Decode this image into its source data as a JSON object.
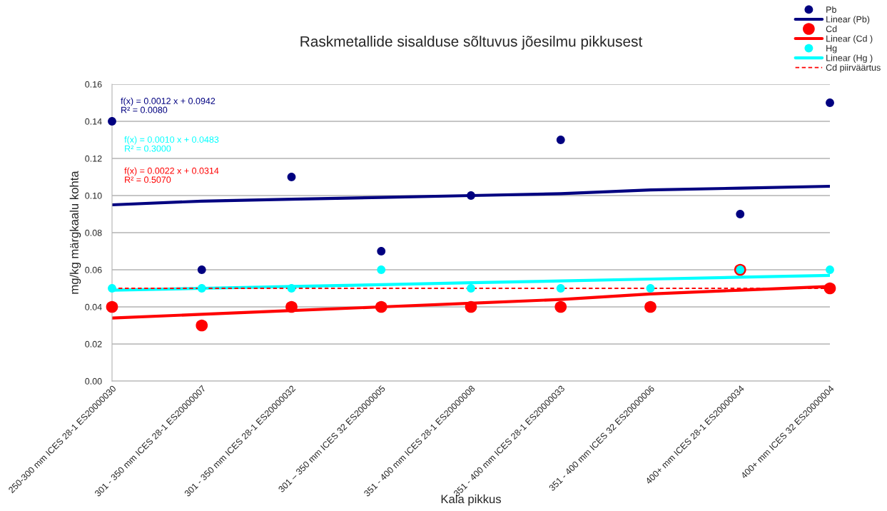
{
  "chart_data": {
    "type": "scatter",
    "title": "Raskmetallide sisalduse sõltuvus jõesilmu pikkusest",
    "xlabel": "Kala pikkus",
    "ylabel": "mg/kg märgkaalu kohta",
    "categories": [
      "250-300 mm ICES 28-1 ES20000030",
      "301 - 350 mm ICES 28-1 ES20000007",
      "301 - 350 mm ICES 28-1 ES20000032",
      "301 – 350 mm ICES 32 ES20000005",
      "351 - 400 mm ICES 28-1 ES20000008",
      "351 - 400 mm ICES 28-1 ES20000033",
      "351 - 400 mm ICES 32 ES20000006",
      "400+ mm ICES 28-1 ES20000034",
      "400+ mm ICES 32 ES20000004"
    ],
    "ylim": [
      0,
      0.16
    ],
    "yticks": [
      {
        "value": 0,
        "label": "0.00"
      },
      {
        "value": 0.02,
        "label": "0.02"
      },
      {
        "value": 0.04,
        "label": "0.04"
      },
      {
        "value": 0.06,
        "label": "0.06"
      },
      {
        "value": 0.08,
        "label": "0.08"
      },
      {
        "value": 0.1,
        "label": "0.10"
      },
      {
        "value": 0.12,
        "label": "0.12"
      },
      {
        "value": 0.14,
        "label": "0.14"
      },
      {
        "value": 0.16,
        "label": "0.16"
      }
    ],
    "grid": "y",
    "legend": "top right",
    "series": [
      {
        "name": "Pb",
        "marker": "circle",
        "color": "#000080",
        "values": [
          0.14,
          0.06,
          0.11,
          0.07,
          0.1,
          0.13,
          null,
          0.09,
          0.15
        ]
      },
      {
        "name": "Linear (Pb)",
        "type": "line",
        "color": "#000080",
        "values": [
          0.095,
          0.097,
          0.098,
          0.099,
          0.1,
          0.101,
          0.103,
          0.104,
          0.105
        ]
      },
      {
        "name": "Cd",
        "marker": "circle",
        "color": "#ff0000",
        "values": [
          0.04,
          0.03,
          0.04,
          0.04,
          0.04,
          0.04,
          0.04,
          0.06,
          0.05
        ]
      },
      {
        "name": "Linear (Cd )",
        "type": "line",
        "color": "#ff0000",
        "values": [
          0.034,
          0.036,
          0.038,
          0.04,
          0.042,
          0.044,
          0.047,
          0.049,
          0.051
        ]
      },
      {
        "name": "Hg",
        "marker": "circle",
        "color": "#00ffff",
        "values": [
          0.05,
          0.05,
          0.05,
          0.06,
          0.05,
          0.05,
          0.05,
          0.06,
          0.06
        ]
      },
      {
        "name": "Linear (Hg )",
        "type": "line",
        "color": "#00ffff",
        "values": [
          0.049,
          0.05,
          0.051,
          0.052,
          0.053,
          0.054,
          0.055,
          0.056,
          0.057
        ]
      },
      {
        "name": "Cd piirväärtus",
        "type": "line",
        "line_style": "dashed",
        "color": "#ff0000",
        "values": [
          0.05,
          0.05,
          0.05,
          0.05,
          0.05,
          0.05,
          0.05,
          0.05,
          0.05
        ]
      }
    ],
    "annotations": [
      "f(x) = 0.0012 x + 0.0942\nR² = 0.0080",
      "f(x) = 0.0010 x + 0.0483\nR² = 0.3000",
      "f(x) = 0.0022 x + 0.0314\nR² = 0.5070"
    ]
  }
}
